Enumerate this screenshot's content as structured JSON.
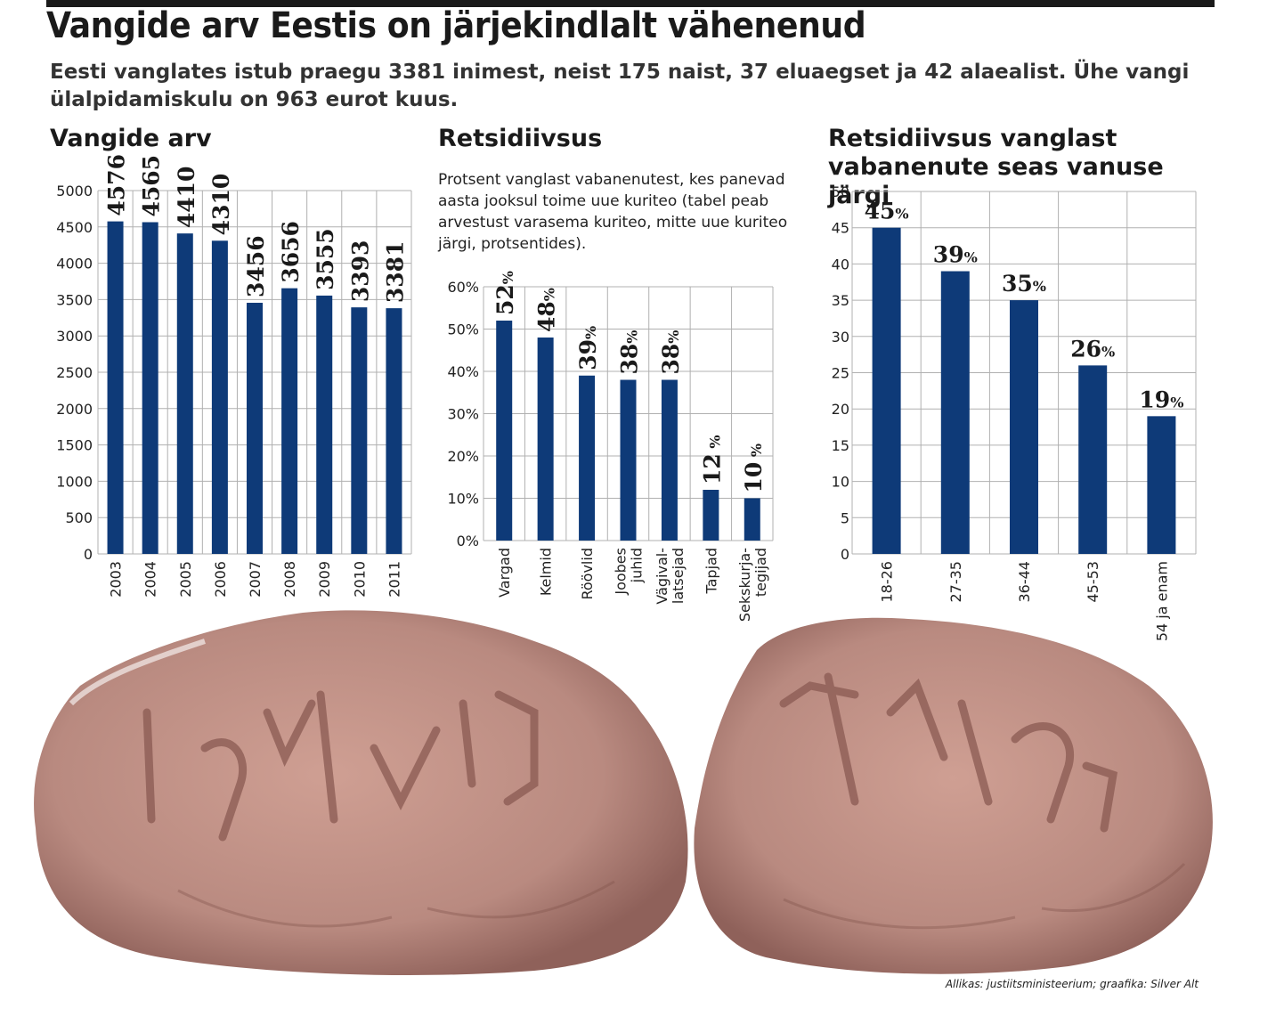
{
  "header": {
    "title": "Vangide arv Eestis on järjekindlalt vähenenud",
    "subtitle": "Eesti vanglates istub praegu 3381 inimest, neist 175 naist, 37 eluaegset ja 42 alaealist. Ühe vangi ülalpidamiskulu on 963 eurot kuus."
  },
  "source": "Allikas: justiitsministeerium; graafika: Silver Alt",
  "colors": {
    "bar": "#0e3a78",
    "grid": "#b0b0b0",
    "skin_light": "#c9988d",
    "skin_dark": "#8a5a52"
  },
  "illustration": {
    "icon": "tattooed-fists"
  },
  "chart_data": [
    {
      "type": "bar",
      "title": "Vangide arv",
      "categories": [
        "2003",
        "2004",
        "2005",
        "2006",
        "2007",
        "2008",
        "2009",
        "2010",
        "2011"
      ],
      "values": [
        4576,
        4565,
        4410,
        4310,
        3456,
        3656,
        3555,
        3393,
        3381
      ],
      "value_labels": [
        "4576",
        "4565",
        "4410",
        "4310",
        "3456",
        "3656",
        "3555",
        "3393",
        "3381"
      ],
      "yticks": [
        "0",
        "500",
        "1000",
        "1500",
        "2000",
        "2500",
        "3000",
        "3500",
        "4000",
        "4500",
        "5000"
      ],
      "ylim": [
        0,
        5000
      ],
      "grid": true
    },
    {
      "type": "bar",
      "title": "Retsidiivsus",
      "description": "Protsent vanglast vabanenutest, kes panevad aasta jooksul toime uue kuriteo (tabel peab arvestust varasema kuriteo, mitte uue kuriteo järgi, protsentides).",
      "categories": [
        [
          "Vargad"
        ],
        [
          "Kelmid"
        ],
        [
          "Röövlid"
        ],
        [
          "Joobes",
          "juhid"
        ],
        [
          "Vägival-",
          "latsejad"
        ],
        [
          "Tapjad"
        ],
        [
          "Sekskurja-",
          "tegijad"
        ]
      ],
      "values": [
        52,
        48,
        39,
        38,
        38,
        12,
        10
      ],
      "value_labels": [
        "52",
        "48",
        "39",
        "38",
        "38",
        "12",
        "10"
      ],
      "value_suffix": "%",
      "yticks": [
        "0%",
        "10%",
        "20%",
        "30%",
        "40%",
        "50%",
        "60%"
      ],
      "ylim": [
        0,
        60
      ],
      "grid": true
    },
    {
      "type": "bar",
      "title": "Retsidiivsus vanglast vabanenute seas vanuse järgi",
      "categories": [
        "18-26",
        "27-35",
        "36-44",
        "45-53",
        "54 ja enam"
      ],
      "values": [
        45,
        39,
        35,
        26,
        19
      ],
      "value_labels": [
        "45",
        "39",
        "35",
        "26",
        "19"
      ],
      "value_suffix": "%",
      "yticks": [
        "0",
        "5",
        "10",
        "15",
        "20",
        "25",
        "30",
        "35",
        "40",
        "45",
        "50"
      ],
      "ylim": [
        0,
        50
      ],
      "grid": true
    }
  ]
}
